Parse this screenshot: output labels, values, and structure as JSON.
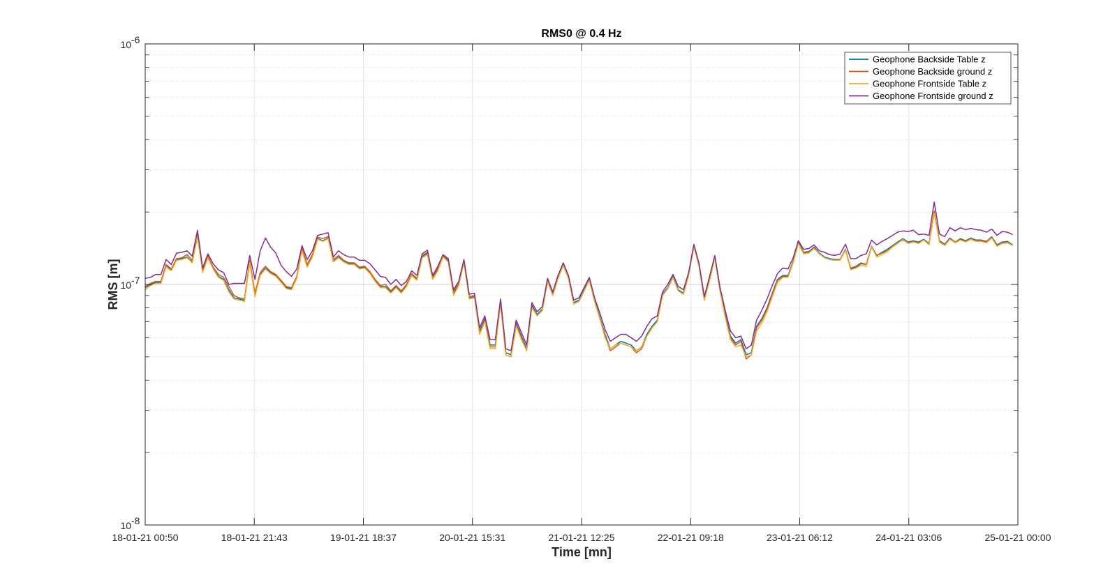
{
  "chart_data": {
    "type": "line",
    "title": "RMS0 @ 0.4 Hz",
    "xlabel": "Time [mn]",
    "ylabel": "RMS [m]",
    "yscale": "log",
    "ylim": [
      1e-08,
      1e-06
    ],
    "xlim": [
      "18-01-21 00:50",
      "25-01-21 00:00"
    ],
    "x_ticks": [
      "18-01-21 00:50",
      "18-01-21 21:43",
      "19-01-21 18:37",
      "20-01-21 15:31",
      "21-01-21 12:25",
      "22-01-21 09:18",
      "23-01-21 06:12",
      "24-01-21 03:06",
      "25-01-21 00:00"
    ],
    "y_ticks": [
      {
        "base": "10",
        "exp": "-8",
        "value": 1e-08
      },
      {
        "base": "10",
        "exp": "-7",
        "value": 1e-07
      },
      {
        "base": "10",
        "exp": "-6",
        "value": 1e-06
      }
    ],
    "grid": true,
    "minor_grid": true,
    "legend_position": "top-right",
    "x_hours": [
      0,
      1,
      2,
      3,
      4,
      5,
      6,
      7,
      8,
      9,
      10,
      11,
      12,
      13,
      14,
      15,
      16,
      17,
      18,
      19,
      20,
      21,
      22,
      23,
      24,
      25,
      26,
      27,
      28,
      29,
      30,
      31,
      32,
      33,
      34,
      35,
      36,
      37,
      38,
      39,
      40,
      41,
      42,
      43,
      44,
      45,
      46,
      47,
      48,
      49,
      50,
      51,
      52,
      53,
      54,
      55,
      56,
      57,
      58,
      59,
      60,
      61,
      62,
      63,
      64,
      65,
      66,
      67,
      68,
      69,
      70,
      71,
      72,
      73,
      74,
      75,
      76,
      77,
      78,
      79,
      80,
      81,
      82,
      83,
      84,
      85,
      86,
      87,
      88,
      89,
      90,
      91,
      92,
      93,
      94,
      95,
      96,
      97,
      98,
      99,
      100,
      101,
      102,
      103,
      104,
      105,
      106,
      107,
      108,
      109,
      110,
      111,
      112,
      113,
      114,
      115,
      116,
      117,
      118,
      119,
      120,
      121,
      122,
      123,
      124,
      125,
      126,
      127,
      128,
      129,
      130,
      131,
      132,
      133,
      134,
      135,
      136,
      137,
      138,
      139,
      140,
      141,
      142,
      143,
      144,
      145,
      146,
      147,
      148,
      149,
      150,
      151,
      152,
      153,
      154,
      155,
      156,
      157,
      158,
      159,
      160,
      161,
      162,
      163,
      164,
      165,
      166,
      167
    ],
    "series": [
      {
        "name": "Geophone Backside Table z",
        "color": "#0072BD",
        "values": [
          9.7e-08,
          1e-07,
          1.02e-07,
          1.02e-07,
          1.2e-07,
          1.15e-07,
          1.27e-07,
          1.28e-07,
          1.3e-07,
          1.24e-07,
          1.6e-07,
          1.13e-07,
          1.3e-07,
          1.17e-07,
          1.08e-07,
          1.05e-07,
          9.5e-08,
          8.8e-08,
          8.7e-08,
          8.6e-08,
          1.25e-07,
          9e-08,
          1.1e-07,
          1.17e-07,
          1.12e-07,
          1.09e-07,
          1.03e-07,
          9.7e-08,
          9.6e-08,
          1.07e-07,
          1.4e-07,
          1.19e-07,
          1.31e-07,
          1.55e-07,
          1.52e-07,
          1.56e-07,
          1.25e-07,
          1.3e-07,
          1.25e-07,
          1.22e-07,
          1.22e-07,
          1.17e-07,
          1.18e-07,
          1.12e-07,
          1.04e-07,
          9.8e-08,
          9.8e-08,
          9.3e-08,
          9.8e-08,
          9.3e-08,
          9.9e-08,
          1.1e-07,
          1.05e-07,
          1.3e-07,
          1.35e-07,
          1.06e-07,
          1.15e-07,
          1.31e-07,
          1.25e-07,
          9.2e-08,
          1e-07,
          1.24e-07,
          8.8e-08,
          8.9e-08,
          6.4e-08,
          7.2e-08,
          5.6e-08,
          5.6e-08,
          8.5e-08,
          5.2e-08,
          5.1e-08,
          6.9e-08,
          6.1e-08,
          5.4e-08,
          8.2e-08,
          7.5e-08,
          7.9e-08,
          1.04e-07,
          9.1e-08,
          1.07e-07,
          1.21e-07,
          1.07e-07,
          8.4e-08,
          8.6e-08,
          9.5e-08,
          1.05e-07,
          8.6e-08,
          7.3e-08,
          6.2e-08,
          5.4e-08,
          5.6e-08,
          5.8e-08,
          5.7e-08,
          5.6e-08,
          5.3e-08,
          5.5e-08,
          6.2e-08,
          6.7e-08,
          7.1e-08,
          9.1e-08,
          9.7e-08,
          1.08e-07,
          9.5e-08,
          9.2e-08,
          1.1e-07,
          1.45e-07,
          1.2e-07,
          8.7e-08,
          1.05e-07,
          1.3e-07,
          9.5e-08,
          7.5e-08,
          6.1e-08,
          5.7e-08,
          5.9e-08,
          5.1e-08,
          5.2e-08,
          6.7e-08,
          7.2e-08,
          8e-08,
          9.2e-08,
          1.05e-07,
          1.09e-07,
          1.09e-07,
          1.25e-07,
          1.5e-07,
          1.36e-07,
          1.37e-07,
          1.43e-07,
          1.35e-07,
          1.3e-07,
          1.28e-07,
          1.27e-07,
          1.27e-07,
          1.4e-07,
          1.16e-07,
          1.18e-07,
          1.22e-07,
          1.21e-07,
          1.44e-07,
          1.32e-07,
          1.36e-07,
          1.4e-07,
          1.45e-07,
          1.5e-07,
          1.55e-07,
          1.5e-07,
          1.52e-07,
          1.5e-07,
          1.54e-07,
          1.48e-07,
          2e-07,
          1.52e-07,
          1.47e-07,
          1.56e-07,
          1.5e-07,
          1.55e-07,
          1.52e-07,
          1.56e-07,
          1.53e-07,
          1.53e-07,
          1.51e-07,
          1.58e-07,
          1.46e-07,
          1.5e-07,
          1.51e-07,
          1.46e-07
        ]
      },
      {
        "name": "Geophone Backside ground z",
        "color": "#D95319",
        "values": [
          9.8e-08,
          1.01e-07,
          1.03e-07,
          1.03e-07,
          1.21e-07,
          1.16e-07,
          1.28e-07,
          1.29e-07,
          1.33e-07,
          1.26e-07,
          1.62e-07,
          1.14e-07,
          1.32e-07,
          1.18e-07,
          1.1e-07,
          1.07e-07,
          9.8e-08,
          9e-08,
          8.8e-08,
          8.7e-08,
          1.26e-07,
          9.2e-08,
          1.12e-07,
          1.19e-07,
          1.13e-07,
          1.1e-07,
          1.04e-07,
          9.8e-08,
          9.7e-08,
          1.08e-07,
          1.42e-07,
          1.21e-07,
          1.33e-07,
          1.57e-07,
          1.55e-07,
          1.58e-07,
          1.27e-07,
          1.32e-07,
          1.26e-07,
          1.23e-07,
          1.23e-07,
          1.18e-07,
          1.19e-07,
          1.13e-07,
          1.05e-07,
          9.9e-08,
          1e-07,
          9.4e-08,
          9.9e-08,
          9.4e-08,
          1e-07,
          1.11e-07,
          1.06e-07,
          1.32e-07,
          1.36e-07,
          1.07e-07,
          1.17e-07,
          1.32e-07,
          1.27e-07,
          9.3e-08,
          1.01e-07,
          1.25e-07,
          8.9e-08,
          9e-08,
          6.3e-08,
          7.1e-08,
          5.5e-08,
          5.5e-08,
          8.4e-08,
          5.1e-08,
          5e-08,
          6.8e-08,
          6e-08,
          5.3e-08,
          8.1e-08,
          7.4e-08,
          7.8e-08,
          1.03e-07,
          9e-08,
          1.06e-07,
          1.2e-07,
          1.06e-07,
          8.3e-08,
          8.5e-08,
          9.4e-08,
          1.04e-07,
          8.5e-08,
          7.2e-08,
          6.1e-08,
          5.3e-08,
          5.5e-08,
          5.7e-08,
          5.6e-08,
          5.5e-08,
          5.2e-08,
          5.4e-08,
          6.1e-08,
          6.6e-08,
          7e-08,
          9e-08,
          9.6e-08,
          1.07e-07,
          9.4e-08,
          9.1e-08,
          1.09e-07,
          1.44e-07,
          1.19e-07,
          8.6e-08,
          1.04e-07,
          1.29e-07,
          9.4e-08,
          7.4e-08,
          6e-08,
          5.6e-08,
          5.8e-08,
          4.9e-08,
          5.1e-08,
          6.6e-08,
          7.1e-08,
          7.9e-08,
          9.1e-08,
          1.04e-07,
          1.08e-07,
          1.08e-07,
          1.24e-07,
          1.49e-07,
          1.35e-07,
          1.36e-07,
          1.42e-07,
          1.34e-07,
          1.29e-07,
          1.27e-07,
          1.26e-07,
          1.27e-07,
          1.39e-07,
          1.17e-07,
          1.19e-07,
          1.23e-07,
          1.21e-07,
          1.43e-07,
          1.32e-07,
          1.35e-07,
          1.38e-07,
          1.44e-07,
          1.49e-07,
          1.53e-07,
          1.49e-07,
          1.51e-07,
          1.49e-07,
          1.53e-07,
          1.47e-07,
          2.02e-07,
          1.51e-07,
          1.46e-07,
          1.55e-07,
          1.5e-07,
          1.54e-07,
          1.51e-07,
          1.55e-07,
          1.52e-07,
          1.52e-07,
          1.5e-07,
          1.57e-07,
          1.45e-07,
          1.49e-07,
          1.5e-07,
          1.45e-07
        ]
      },
      {
        "name": "Geophone Frontside Table z",
        "color": "#EDB120",
        "values": [
          9.5e-08,
          9.9e-08,
          1.01e-07,
          1.01e-07,
          1.18e-07,
          1.14e-07,
          1.26e-07,
          1.27e-07,
          1.29e-07,
          1.23e-07,
          1.58e-07,
          1.12e-07,
          1.29e-07,
          1.16e-07,
          1.07e-07,
          1.04e-07,
          9.3e-08,
          8.7e-08,
          8.6e-08,
          8.5e-08,
          1.23e-07,
          8.9e-08,
          1.09e-07,
          1.16e-07,
          1.11e-07,
          1.08e-07,
          1.02e-07,
          9.6e-08,
          9.5e-08,
          1.06e-07,
          1.38e-07,
          1.18e-07,
          1.3e-07,
          1.54e-07,
          1.51e-07,
          1.55e-07,
          1.24e-07,
          1.29e-07,
          1.24e-07,
          1.21e-07,
          1.21e-07,
          1.16e-07,
          1.17e-07,
          1.11e-07,
          1.03e-07,
          9.7e-08,
          9.7e-08,
          9.2e-08,
          9.7e-08,
          9.2e-08,
          9.8e-08,
          1.09e-07,
          1.04e-07,
          1.29e-07,
          1.33e-07,
          1.05e-07,
          1.14e-07,
          1.3e-07,
          1.24e-07,
          9e-08,
          9.9e-08,
          1.23e-07,
          8.7e-08,
          8.8e-08,
          6.2e-08,
          7e-08,
          5.4e-08,
          5.4e-08,
          8.3e-08,
          5.1e-08,
          5e-08,
          6.7e-08,
          5.9e-08,
          5.3e-08,
          8e-08,
          7.4e-08,
          7.8e-08,
          1.03e-07,
          9e-08,
          1.06e-07,
          1.2e-07,
          1.06e-07,
          8.3e-08,
          8.5e-08,
          9.4e-08,
          1.04e-07,
          8.5e-08,
          7.2e-08,
          6e-08,
          5.4e-08,
          5.6e-08,
          5.7e-08,
          5.6e-08,
          5.5e-08,
          5.3e-08,
          5.5e-08,
          6.1e-08,
          6.6e-08,
          7e-08,
          9e-08,
          9.6e-08,
          1.07e-07,
          9.4e-08,
          9.1e-08,
          1.09e-07,
          1.44e-07,
          1.19e-07,
          8.6e-08,
          1.04e-07,
          1.29e-07,
          9.4e-08,
          7.3e-08,
          5.9e-08,
          5.5e-08,
          5.6e-08,
          5e-08,
          5.1e-08,
          6.4e-08,
          6.9e-08,
          7.7e-08,
          8.9e-08,
          1.02e-07,
          1.07e-07,
          1.07e-07,
          1.23e-07,
          1.48e-07,
          1.34e-07,
          1.35e-07,
          1.41e-07,
          1.34e-07,
          1.29e-07,
          1.27e-07,
          1.26e-07,
          1.26e-07,
          1.39e-07,
          1.15e-07,
          1.17e-07,
          1.2e-07,
          1.19e-07,
          1.43e-07,
          1.3e-07,
          1.33e-07,
          1.37e-07,
          1.43e-07,
          1.48e-07,
          1.54e-07,
          1.48e-07,
          1.5e-07,
          1.48e-07,
          1.53e-07,
          1.46e-07,
          1.98e-07,
          1.5e-07,
          1.45e-07,
          1.54e-07,
          1.49e-07,
          1.53e-07,
          1.5e-07,
          1.54e-07,
          1.51e-07,
          1.51e-07,
          1.49e-07,
          1.56e-07,
          1.44e-07,
          1.48e-07,
          1.49e-07,
          1.45e-07
        ]
      },
      {
        "name": "Geophone Frontside ground z",
        "color": "#7E2F8E",
        "values": [
          1.06e-07,
          1.07e-07,
          1.1e-07,
          1.1e-07,
          1.27e-07,
          1.21e-07,
          1.35e-07,
          1.36e-07,
          1.38e-07,
          1.31e-07,
          1.68e-07,
          1.17e-07,
          1.34e-07,
          1.22e-07,
          1.15e-07,
          1.12e-07,
          1e-07,
          1.01e-07,
          1.01e-07,
          1.01e-07,
          1.32e-07,
          1.05e-07,
          1.38e-07,
          1.56e-07,
          1.43e-07,
          1.35e-07,
          1.2e-07,
          1.13e-07,
          1.08e-07,
          1.16e-07,
          1.45e-07,
          1.27e-07,
          1.38e-07,
          1.6e-07,
          1.62e-07,
          1.64e-07,
          1.3e-07,
          1.38e-07,
          1.33e-07,
          1.3e-07,
          1.3e-07,
          1.26e-07,
          1.26e-07,
          1.22e-07,
          1.15e-07,
          1.08e-07,
          1.07e-07,
          1e-07,
          1.05e-07,
          9.9e-08,
          1.03e-07,
          1.14e-07,
          1.09e-07,
          1.34e-07,
          1.39e-07,
          1.09e-07,
          1.19e-07,
          1.33e-07,
          1.28e-07,
          9.5e-08,
          1.03e-07,
          1.27e-07,
          9.1e-08,
          9.2e-08,
          6.6e-08,
          7.4e-08,
          5.9e-08,
          5.9e-08,
          8.7e-08,
          5.4e-08,
          5.3e-08,
          7.1e-08,
          6.3e-08,
          5.6e-08,
          8.4e-08,
          7.7e-08,
          8.1e-08,
          1.06e-07,
          9.3e-08,
          1.09e-07,
          1.23e-07,
          1.09e-07,
          8.6e-08,
          8.8e-08,
          9.7e-08,
          1.07e-07,
          8.8e-08,
          7.6e-08,
          6.5e-08,
          5.8e-08,
          6e-08,
          6.2e-08,
          6.2e-08,
          6e-08,
          5.8e-08,
          6.1e-08,
          6.7e-08,
          7.2e-08,
          7.4e-08,
          9.3e-08,
          1e-07,
          1.1e-07,
          9.8e-08,
          9.5e-08,
          1.12e-07,
          1.47e-07,
          1.22e-07,
          8.9e-08,
          1.08e-07,
          1.32e-07,
          9.7e-08,
          7.8e-08,
          6.4e-08,
          6e-08,
          6.1e-08,
          5.4e-08,
          5.6e-08,
          7.1e-08,
          7.8e-08,
          8.7e-08,
          9.9e-08,
          1.11e-07,
          1.17e-07,
          1.16e-07,
          1.29e-07,
          1.52e-07,
          1.4e-07,
          1.41e-07,
          1.46e-07,
          1.38e-07,
          1.36e-07,
          1.33e-07,
          1.32e-07,
          1.34e-07,
          1.47e-07,
          1.28e-07,
          1.28e-07,
          1.32e-07,
          1.34e-07,
          1.53e-07,
          1.46e-07,
          1.51e-07,
          1.55e-07,
          1.6e-07,
          1.65e-07,
          1.67e-07,
          1.66e-07,
          1.68e-07,
          1.61e-07,
          1.62e-07,
          1.6e-07,
          2.2e-07,
          1.62e-07,
          1.58e-07,
          1.72e-07,
          1.67e-07,
          1.72e-07,
          1.69e-07,
          1.71e-07,
          1.69e-07,
          1.68e-07,
          1.65e-07,
          1.7e-07,
          1.6e-07,
          1.66e-07,
          1.65e-07,
          1.61e-07
        ]
      }
    ]
  }
}
